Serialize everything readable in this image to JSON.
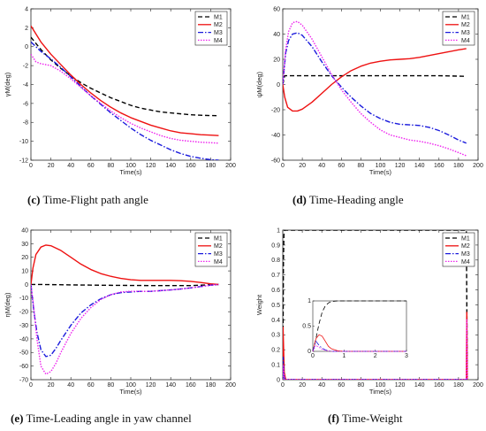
{
  "captions": [
    {
      "letter": "(c)",
      "text": " Time-Flight path angle"
    },
    {
      "letter": "(d)",
      "text": " Time-Heading angle"
    },
    {
      "letter": "(e)",
      "text": " Time-Leading angle in yaw channel"
    },
    {
      "letter": "(f)",
      "text": " Time-Weight"
    }
  ],
  "chart_data": [
    {
      "type": "line",
      "xlabel": "Time(s)",
      "ylabel": "γM(deg)",
      "xlim": [
        0,
        200
      ],
      "ylim": [
        -12,
        4
      ],
      "xticks": [
        0,
        20,
        40,
        60,
        80,
        100,
        120,
        140,
        160,
        180,
        200
      ],
      "yticks": [
        4,
        2,
        0,
        -2,
        -4,
        -6,
        -8,
        -10,
        -12
      ],
      "legend": [
        "M1",
        "M2",
        "M3",
        "M4"
      ],
      "legend_position": "top-right",
      "series": [
        {
          "name": "M1",
          "x": [
            0,
            10,
            20,
            30,
            40,
            50,
            60,
            70,
            80,
            90,
            100,
            110,
            120,
            130,
            140,
            150,
            160,
            170,
            180,
            188
          ],
          "y": [
            1.0,
            -0.3,
            -1.4,
            -2.3,
            -3.1,
            -3.8,
            -4.4,
            -4.9,
            -5.4,
            -5.8,
            -6.2,
            -6.5,
            -6.7,
            -6.9,
            -7.0,
            -7.1,
            -7.2,
            -7.25,
            -7.28,
            -7.3
          ]
        },
        {
          "name": "M2",
          "x": [
            0,
            10,
            20,
            30,
            40,
            50,
            60,
            70,
            80,
            90,
            100,
            110,
            120,
            130,
            140,
            150,
            160,
            170,
            180,
            188
          ],
          "y": [
            2.2,
            0.5,
            -0.8,
            -1.9,
            -3.0,
            -4.0,
            -4.9,
            -5.7,
            -6.4,
            -7.0,
            -7.5,
            -7.9,
            -8.3,
            -8.6,
            -8.9,
            -9.1,
            -9.2,
            -9.3,
            -9.35,
            -9.4
          ]
        },
        {
          "name": "M3",
          "x": [
            0,
            10,
            20,
            30,
            40,
            50,
            60,
            70,
            80,
            90,
            100,
            110,
            120,
            130,
            140,
            150,
            160,
            170,
            180,
            188
          ],
          "y": [
            0.5,
            -0.5,
            -1.3,
            -2.2,
            -3.2,
            -4.2,
            -5.2,
            -6.1,
            -7.0,
            -7.8,
            -8.6,
            -9.3,
            -9.9,
            -10.4,
            -10.9,
            -11.3,
            -11.6,
            -11.8,
            -11.95,
            -12.0
          ]
        },
        {
          "name": "M4",
          "x": [
            0,
            5,
            10,
            20,
            30,
            40,
            50,
            60,
            70,
            80,
            90,
            100,
            110,
            120,
            130,
            140,
            150,
            160,
            170,
            180,
            188
          ],
          "y": [
            -0.8,
            -1.6,
            -1.8,
            -2.0,
            -2.6,
            -3.4,
            -4.3,
            -5.2,
            -6.0,
            -6.8,
            -7.5,
            -8.1,
            -8.6,
            -9.0,
            -9.4,
            -9.7,
            -9.9,
            -10.0,
            -10.1,
            -10.15,
            -10.2
          ]
        }
      ]
    },
    {
      "type": "line",
      "xlabel": "Time(s)",
      "ylabel": "ψM(deg)",
      "xlim": [
        0,
        200
      ],
      "ylim": [
        -60,
        60
      ],
      "xticks": [
        0,
        20,
        40,
        60,
        80,
        100,
        120,
        140,
        160,
        180,
        200
      ],
      "yticks": [
        60,
        40,
        20,
        0,
        -20,
        -40,
        -60
      ],
      "legend": [
        "M1",
        "M2",
        "M3",
        "M4"
      ],
      "legend_position": "top-right",
      "series": [
        {
          "name": "M1",
          "x": [
            0,
            2,
            10,
            40,
            80,
            120,
            160,
            188
          ],
          "y": [
            0,
            7,
            7,
            7,
            7,
            7,
            7,
            6.5
          ]
        },
        {
          "name": "M2",
          "x": [
            0,
            2,
            5,
            10,
            15,
            20,
            30,
            40,
            50,
            60,
            70,
            80,
            90,
            100,
            110,
            120,
            130,
            140,
            150,
            160,
            170,
            180,
            188
          ],
          "y": [
            0,
            -10,
            -18,
            -21,
            -21,
            -19.5,
            -14,
            -7,
            0,
            6,
            11,
            14.5,
            17,
            18.5,
            19.5,
            20,
            20.5,
            21.5,
            23,
            24.5,
            26,
            27.5,
            28.5
          ]
        },
        {
          "name": "M3",
          "x": [
            0,
            3,
            6,
            10,
            15,
            20,
            30,
            40,
            50,
            60,
            70,
            80,
            90,
            100,
            110,
            120,
            130,
            140,
            150,
            160,
            170,
            180,
            188
          ],
          "y": [
            0,
            25,
            35,
            40,
            41,
            39,
            30,
            18,
            7,
            -2,
            -10,
            -17,
            -23,
            -27,
            -30,
            -31.5,
            -32,
            -32.5,
            -34,
            -36.5,
            -40,
            -44,
            -46.5
          ]
        },
        {
          "name": "M4",
          "x": [
            0,
            3,
            6,
            10,
            15,
            20,
            30,
            40,
            50,
            60,
            70,
            80,
            90,
            100,
            110,
            120,
            130,
            140,
            150,
            160,
            170,
            180,
            188
          ],
          "y": [
            0,
            28,
            42,
            49,
            50,
            47,
            36,
            22,
            8,
            -4,
            -14,
            -23,
            -30,
            -36,
            -40,
            -42,
            -44,
            -45,
            -46.5,
            -48.5,
            -51,
            -54,
            -56.5
          ]
        }
      ]
    },
    {
      "type": "line",
      "xlabel": "Time(s)",
      "ylabel": "ηM(deg)",
      "xlim": [
        0,
        200
      ],
      "ylim": [
        -70,
        40
      ],
      "xticks": [
        0,
        20,
        40,
        60,
        80,
        100,
        120,
        140,
        160,
        180,
        200
      ],
      "yticks": [
        40,
        30,
        20,
        10,
        0,
        -10,
        -20,
        -30,
        -40,
        -50,
        -60,
        -70
      ],
      "legend": [
        "M1",
        "M2",
        "M3",
        "M4"
      ],
      "legend_position": "top-right",
      "series": [
        {
          "name": "M1",
          "x": [
            0,
            10,
            40,
            80,
            120,
            160,
            188
          ],
          "y": [
            0,
            0,
            -0.3,
            -0.6,
            -0.8,
            -0.8,
            0
          ]
        },
        {
          "name": "M2",
          "x": [
            0,
            2,
            5,
            10,
            15,
            20,
            30,
            40,
            50,
            60,
            70,
            80,
            90,
            100,
            110,
            120,
            130,
            140,
            150,
            160,
            170,
            180,
            188
          ],
          "y": [
            0,
            12,
            22,
            27.5,
            29,
            28.5,
            25,
            20,
            15,
            11,
            8,
            6,
            4.5,
            3.5,
            3,
            3,
            3,
            3,
            2.8,
            2.3,
            1.5,
            0.5,
            0
          ]
        },
        {
          "name": "M3",
          "x": [
            0,
            3,
            6,
            10,
            15,
            20,
            25,
            30,
            40,
            50,
            60,
            70,
            80,
            90,
            100,
            110,
            120,
            130,
            140,
            150,
            160,
            170,
            180,
            188
          ],
          "y": [
            0,
            -20,
            -35,
            -48,
            -53,
            -52,
            -47,
            -41,
            -30,
            -21,
            -15,
            -10.5,
            -7.5,
            -6,
            -5.5,
            -5,
            -5,
            -4.5,
            -4,
            -3.3,
            -2.5,
            -1.5,
            -0.5,
            0
          ]
        },
        {
          "name": "M4",
          "x": [
            0,
            3,
            6,
            10,
            15,
            20,
            25,
            30,
            40,
            50,
            60,
            70,
            80,
            90,
            100,
            110,
            120,
            130,
            140,
            150,
            160,
            170,
            180,
            188
          ],
          "y": [
            0,
            -18,
            -40,
            -60,
            -66,
            -64,
            -58,
            -50,
            -36,
            -25,
            -17,
            -11,
            -7.5,
            -5.5,
            -5,
            -5,
            -5,
            -4.5,
            -4,
            -3.3,
            -2.5,
            -1.5,
            -0.5,
            0
          ]
        }
      ]
    },
    {
      "type": "line",
      "xlabel": "Time(s)",
      "ylabel": "Weight",
      "xlim": [
        0,
        200
      ],
      "ylim": [
        0,
        1
      ],
      "xticks": [
        0,
        20,
        40,
        60,
        80,
        100,
        120,
        140,
        160,
        180,
        200
      ],
      "yticks": [
        1,
        0.9,
        0.8,
        0.7,
        0.6,
        0.5,
        0.4,
        0.3,
        0.2,
        0.1,
        0
      ],
      "legend": [
        "M1",
        "M2",
        "M3",
        "M4"
      ],
      "legend_position": "top-right",
      "series": [
        {
          "name": "M1",
          "x": [
            0,
            0.3,
            0.7,
            1.2,
            2,
            188,
            188.5,
            189
          ],
          "y": [
            0,
            0.3,
            0.8,
            0.97,
            1,
            1,
            0.5,
            0
          ]
        },
        {
          "name": "M2",
          "x": [
            0,
            0.3,
            0.7,
            1.5,
            3,
            188,
            188.5,
            189
          ],
          "y": [
            0,
            0.35,
            0.25,
            0.05,
            0,
            0,
            0.45,
            0
          ]
        },
        {
          "name": "M3",
          "x": [
            0,
            0.3,
            1,
            2,
            188,
            189
          ],
          "y": [
            0,
            0.15,
            0.05,
            0,
            0,
            0
          ]
        },
        {
          "name": "M4",
          "x": [
            0,
            0.3,
            1,
            2,
            188,
            188.5,
            189
          ],
          "y": [
            0,
            0.1,
            0.04,
            0,
            0,
            0.4,
            0
          ]
        }
      ],
      "inset": {
        "xlim": [
          0,
          3
        ],
        "ylim": [
          0,
          1
        ],
        "xticks": [
          0,
          1,
          2,
          3
        ],
        "yticks": [
          1,
          0.5,
          0
        ],
        "series": [
          {
            "name": "M1",
            "x": [
              0,
              0.1,
              0.2,
              0.3,
              0.4,
              0.5,
              0.6,
              0.8,
              1,
              3
            ],
            "y": [
              0,
              0.25,
              0.55,
              0.78,
              0.9,
              0.96,
              0.99,
              1,
              1,
              1
            ]
          },
          {
            "name": "M2",
            "x": [
              0,
              0.1,
              0.2,
              0.3,
              0.4,
              0.5,
              0.6,
              0.8,
              1,
              3
            ],
            "y": [
              0,
              0.25,
              0.33,
              0.3,
              0.2,
              0.1,
              0.05,
              0.01,
              0,
              0
            ]
          },
          {
            "name": "M3",
            "x": [
              0,
              0.1,
              0.2,
              0.3,
              0.4,
              0.5,
              0.6,
              0.8,
              3
            ],
            "y": [
              0,
              0.2,
              0.12,
              0.06,
              0.03,
              0.01,
              0,
              0,
              0
            ]
          },
          {
            "name": "M4",
            "x": [
              0,
              0.1,
              0.2,
              0.3,
              0.4,
              0.5,
              0.6,
              0.8,
              3
            ],
            "y": [
              0,
              0.12,
              0.08,
              0.04,
              0.02,
              0.01,
              0,
              0,
              0
            ]
          }
        ]
      }
    }
  ]
}
